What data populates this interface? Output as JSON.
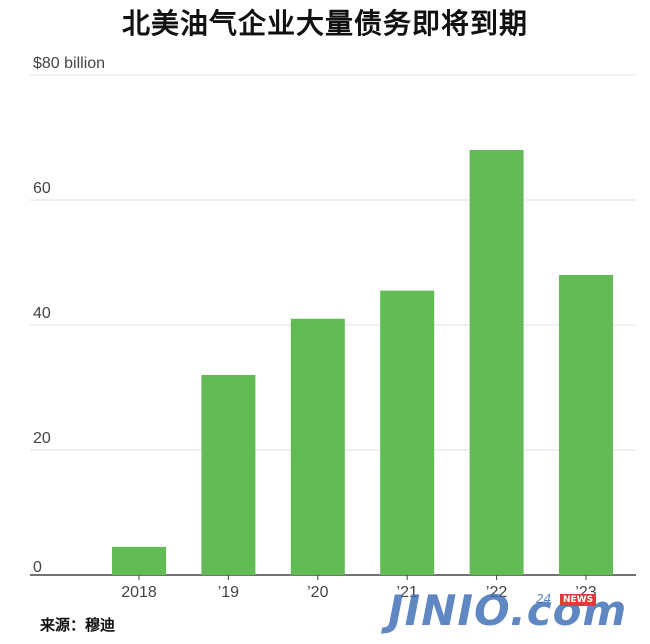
{
  "chart_data": {
    "type": "bar",
    "title": "北美油气企业大量债务即将到期",
    "categories": [
      "2018",
      "’19",
      "’20",
      "’21",
      "’22",
      "’23"
    ],
    "values": [
      4.5,
      32,
      41,
      45.5,
      68,
      48
    ],
    "ylim": [
      0,
      80
    ],
    "yticks": [
      {
        "value": 0,
        "label": "0"
      },
      {
        "value": 20,
        "label": "20"
      },
      {
        "value": 40,
        "label": "40"
      },
      {
        "value": 60,
        "label": "60"
      },
      {
        "value": 80,
        "label": "$80 billion"
      }
    ],
    "grid": true,
    "bar_color": "#62bb55",
    "grid_color": "#e2e2e2",
    "axis_color": "#444444"
  },
  "source": "来源：穆迪",
  "watermark": {
    "logo": "JINIO.com",
    "sub": "24",
    "news": "NEWS"
  }
}
